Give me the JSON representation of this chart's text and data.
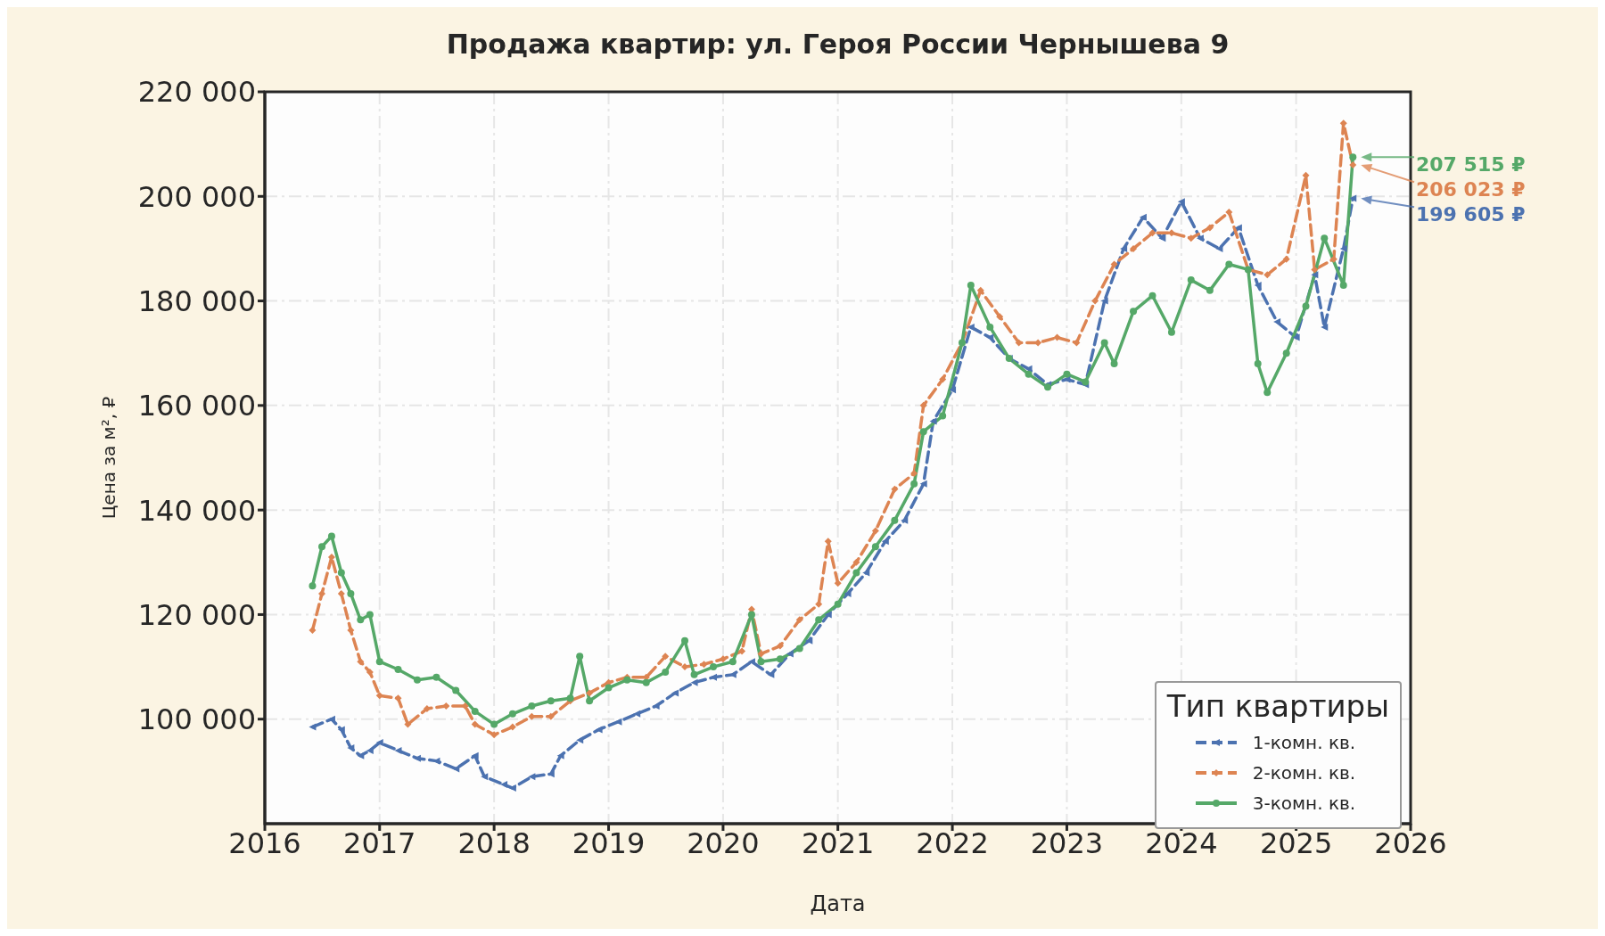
{
  "chart_data": {
    "type": "line",
    "title": "Продажа квартир: ул. Героя России Чернышева 9",
    "xlabel": "Дата",
    "ylabel": "Цена за м², ₽",
    "legend_title": "Тип квартиры",
    "legend": "bottom right",
    "grid": true,
    "xlim": [
      "2016",
      "2026"
    ],
    "xticks": [
      "2016",
      "2017",
      "2018",
      "2019",
      "2020",
      "2021",
      "2022",
      "2023",
      "2024",
      "2025",
      "2026"
    ],
    "ylim": [
      80000,
      220000
    ],
    "yticks": [
      {
        "value": 100000,
        "label": "100 000"
      },
      {
        "value": 120000,
        "label": "120 000"
      },
      {
        "value": 140000,
        "label": "140 000"
      },
      {
        "value": 160000,
        "label": "160 000"
      },
      {
        "value": 180000,
        "label": "180 000"
      },
      {
        "value": 200000,
        "label": "200 000"
      },
      {
        "value": 220000,
        "label": "220 000"
      }
    ],
    "series": [
      {
        "name": "1-комн. кв.",
        "color": "#4c72b0",
        "line_style": "dashed",
        "marker": "triangle",
        "x": [
          "2016-06",
          "2016-08",
          "2016-09",
          "2016-10",
          "2016-11",
          "2016-12",
          "2017-01",
          "2017-03",
          "2017-05",
          "2017-07",
          "2017-09",
          "2017-11",
          "2017-12",
          "2018-02",
          "2018-03",
          "2018-05",
          "2018-07",
          "2018-08",
          "2018-10",
          "2018-12",
          "2019-02",
          "2019-04",
          "2019-06",
          "2019-08",
          "2019-10",
          "2019-12",
          "2020-02",
          "2020-04",
          "2020-06",
          "2020-08",
          "2020-10",
          "2020-12",
          "2021-02",
          "2021-04",
          "2021-06",
          "2021-08",
          "2021-10",
          "2021-11",
          "2022-01",
          "2022-03",
          "2022-05",
          "2022-07",
          "2022-09",
          "2022-11",
          "2023-01",
          "2023-03",
          "2023-05",
          "2023-07",
          "2023-09",
          "2023-11",
          "2024-01",
          "2024-03",
          "2024-05",
          "2024-07",
          "2024-09",
          "2024-11",
          "2025-01",
          "2025-03",
          "2025-04",
          "2025-06",
          "2025-07"
        ],
        "values": [
          98500,
          100000,
          98000,
          94500,
          93000,
          94000,
          95500,
          94000,
          92500,
          92000,
          90500,
          93000,
          89000,
          87500,
          86800,
          89000,
          89500,
          93000,
          96000,
          98000,
          99500,
          101000,
          102500,
          105000,
          107000,
          108000,
          108500,
          111000,
          108500,
          112500,
          115000,
          120000,
          124000,
          128000,
          134000,
          138000,
          145000,
          157000,
          163000,
          175000,
          173000,
          169000,
          167000,
          164000,
          165000,
          164000,
          180000,
          190000,
          196000,
          192000,
          199000,
          192000,
          190000,
          194000,
          183000,
          176000,
          173000,
          185000,
          175000,
          190000,
          199605
        ]
      },
      {
        "name": "2-комн. кв.",
        "color": "#dd8452",
        "line_style": "dashed",
        "marker": "diamond",
        "x": [
          "2016-06",
          "2016-07",
          "2016-08",
          "2016-09",
          "2016-10",
          "2016-11",
          "2016-12",
          "2017-01",
          "2017-03",
          "2017-04",
          "2017-06",
          "2017-08",
          "2017-10",
          "2017-11",
          "2018-01",
          "2018-03",
          "2018-05",
          "2018-07",
          "2018-09",
          "2018-11",
          "2019-01",
          "2019-03",
          "2019-05",
          "2019-07",
          "2019-09",
          "2019-11",
          "2020-01",
          "2020-03",
          "2020-04",
          "2020-05",
          "2020-07",
          "2020-09",
          "2020-11",
          "2020-12",
          "2021-01",
          "2021-03",
          "2021-05",
          "2021-07",
          "2021-09",
          "2021-10",
          "2021-12",
          "2022-02",
          "2022-04",
          "2022-06",
          "2022-08",
          "2022-10",
          "2022-12",
          "2023-02",
          "2023-04",
          "2023-06",
          "2023-08",
          "2023-10",
          "2023-12",
          "2024-02",
          "2024-04",
          "2024-06",
          "2024-08",
          "2024-10",
          "2024-12",
          "2025-02",
          "2025-03",
          "2025-05",
          "2025-06",
          "2025-07"
        ],
        "values": [
          117000,
          124000,
          131000,
          124000,
          117000,
          111000,
          109000,
          104500,
          104000,
          99000,
          102000,
          102500,
          102500,
          99000,
          97000,
          98500,
          100500,
          100500,
          103500,
          105000,
          107000,
          108000,
          108000,
          112000,
          110000,
          110500,
          111500,
          113000,
          121000,
          112500,
          114000,
          119000,
          122000,
          134000,
          126000,
          130000,
          136000,
          144000,
          147000,
          160000,
          165000,
          172000,
          182000,
          177000,
          172000,
          172000,
          173000,
          172000,
          180000,
          187000,
          190000,
          193000,
          193000,
          192000,
          194000,
          197000,
          186000,
          185000,
          188000,
          204000,
          186000,
          188000,
          214000,
          206023
        ]
      },
      {
        "name": "3-комн. кв.",
        "color": "#55a868",
        "line_style": "solid",
        "marker": "circle",
        "x": [
          "2016-06",
          "2016-07",
          "2016-08",
          "2016-09",
          "2016-10",
          "2016-11",
          "2016-12",
          "2017-01",
          "2017-03",
          "2017-05",
          "2017-07",
          "2017-09",
          "2017-11",
          "2018-01",
          "2018-03",
          "2018-05",
          "2018-07",
          "2018-09",
          "2018-10",
          "2018-11",
          "2019-01",
          "2019-03",
          "2019-05",
          "2019-07",
          "2019-09",
          "2019-10",
          "2019-12",
          "2020-02",
          "2020-04",
          "2020-05",
          "2020-07",
          "2020-09",
          "2020-11",
          "2021-01",
          "2021-03",
          "2021-05",
          "2021-07",
          "2021-09",
          "2021-10",
          "2021-12",
          "2022-02",
          "2022-03",
          "2022-05",
          "2022-07",
          "2022-09",
          "2022-11",
          "2023-01",
          "2023-03",
          "2023-05",
          "2023-06",
          "2023-08",
          "2023-10",
          "2023-12",
          "2024-02",
          "2024-04",
          "2024-06",
          "2024-08",
          "2024-09",
          "2024-10",
          "2024-12",
          "2025-02",
          "2025-04",
          "2025-06",
          "2025-07"
        ],
        "values": [
          125500,
          133000,
          135000,
          128000,
          124000,
          119000,
          120000,
          111000,
          109500,
          107500,
          108000,
          105500,
          101500,
          99000,
          101000,
          102500,
          103500,
          104000,
          112000,
          103500,
          106000,
          107500,
          107000,
          109000,
          115000,
          108500,
          110000,
          111000,
          120000,
          111000,
          111500,
          113500,
          119000,
          122000,
          128000,
          133000,
          138000,
          145000,
          155000,
          158000,
          172000,
          183000,
          175000,
          169000,
          166000,
          163500,
          166000,
          164500,
          172000,
          168000,
          178000,
          181000,
          174000,
          184000,
          182000,
          187000,
          186000,
          168000,
          162500,
          170000,
          179000,
          192000,
          183000,
          207515
        ]
      }
    ],
    "annotations": [
      "199 605 ₽",
      "206 023 ₽",
      "207 515 ₽"
    ]
  }
}
